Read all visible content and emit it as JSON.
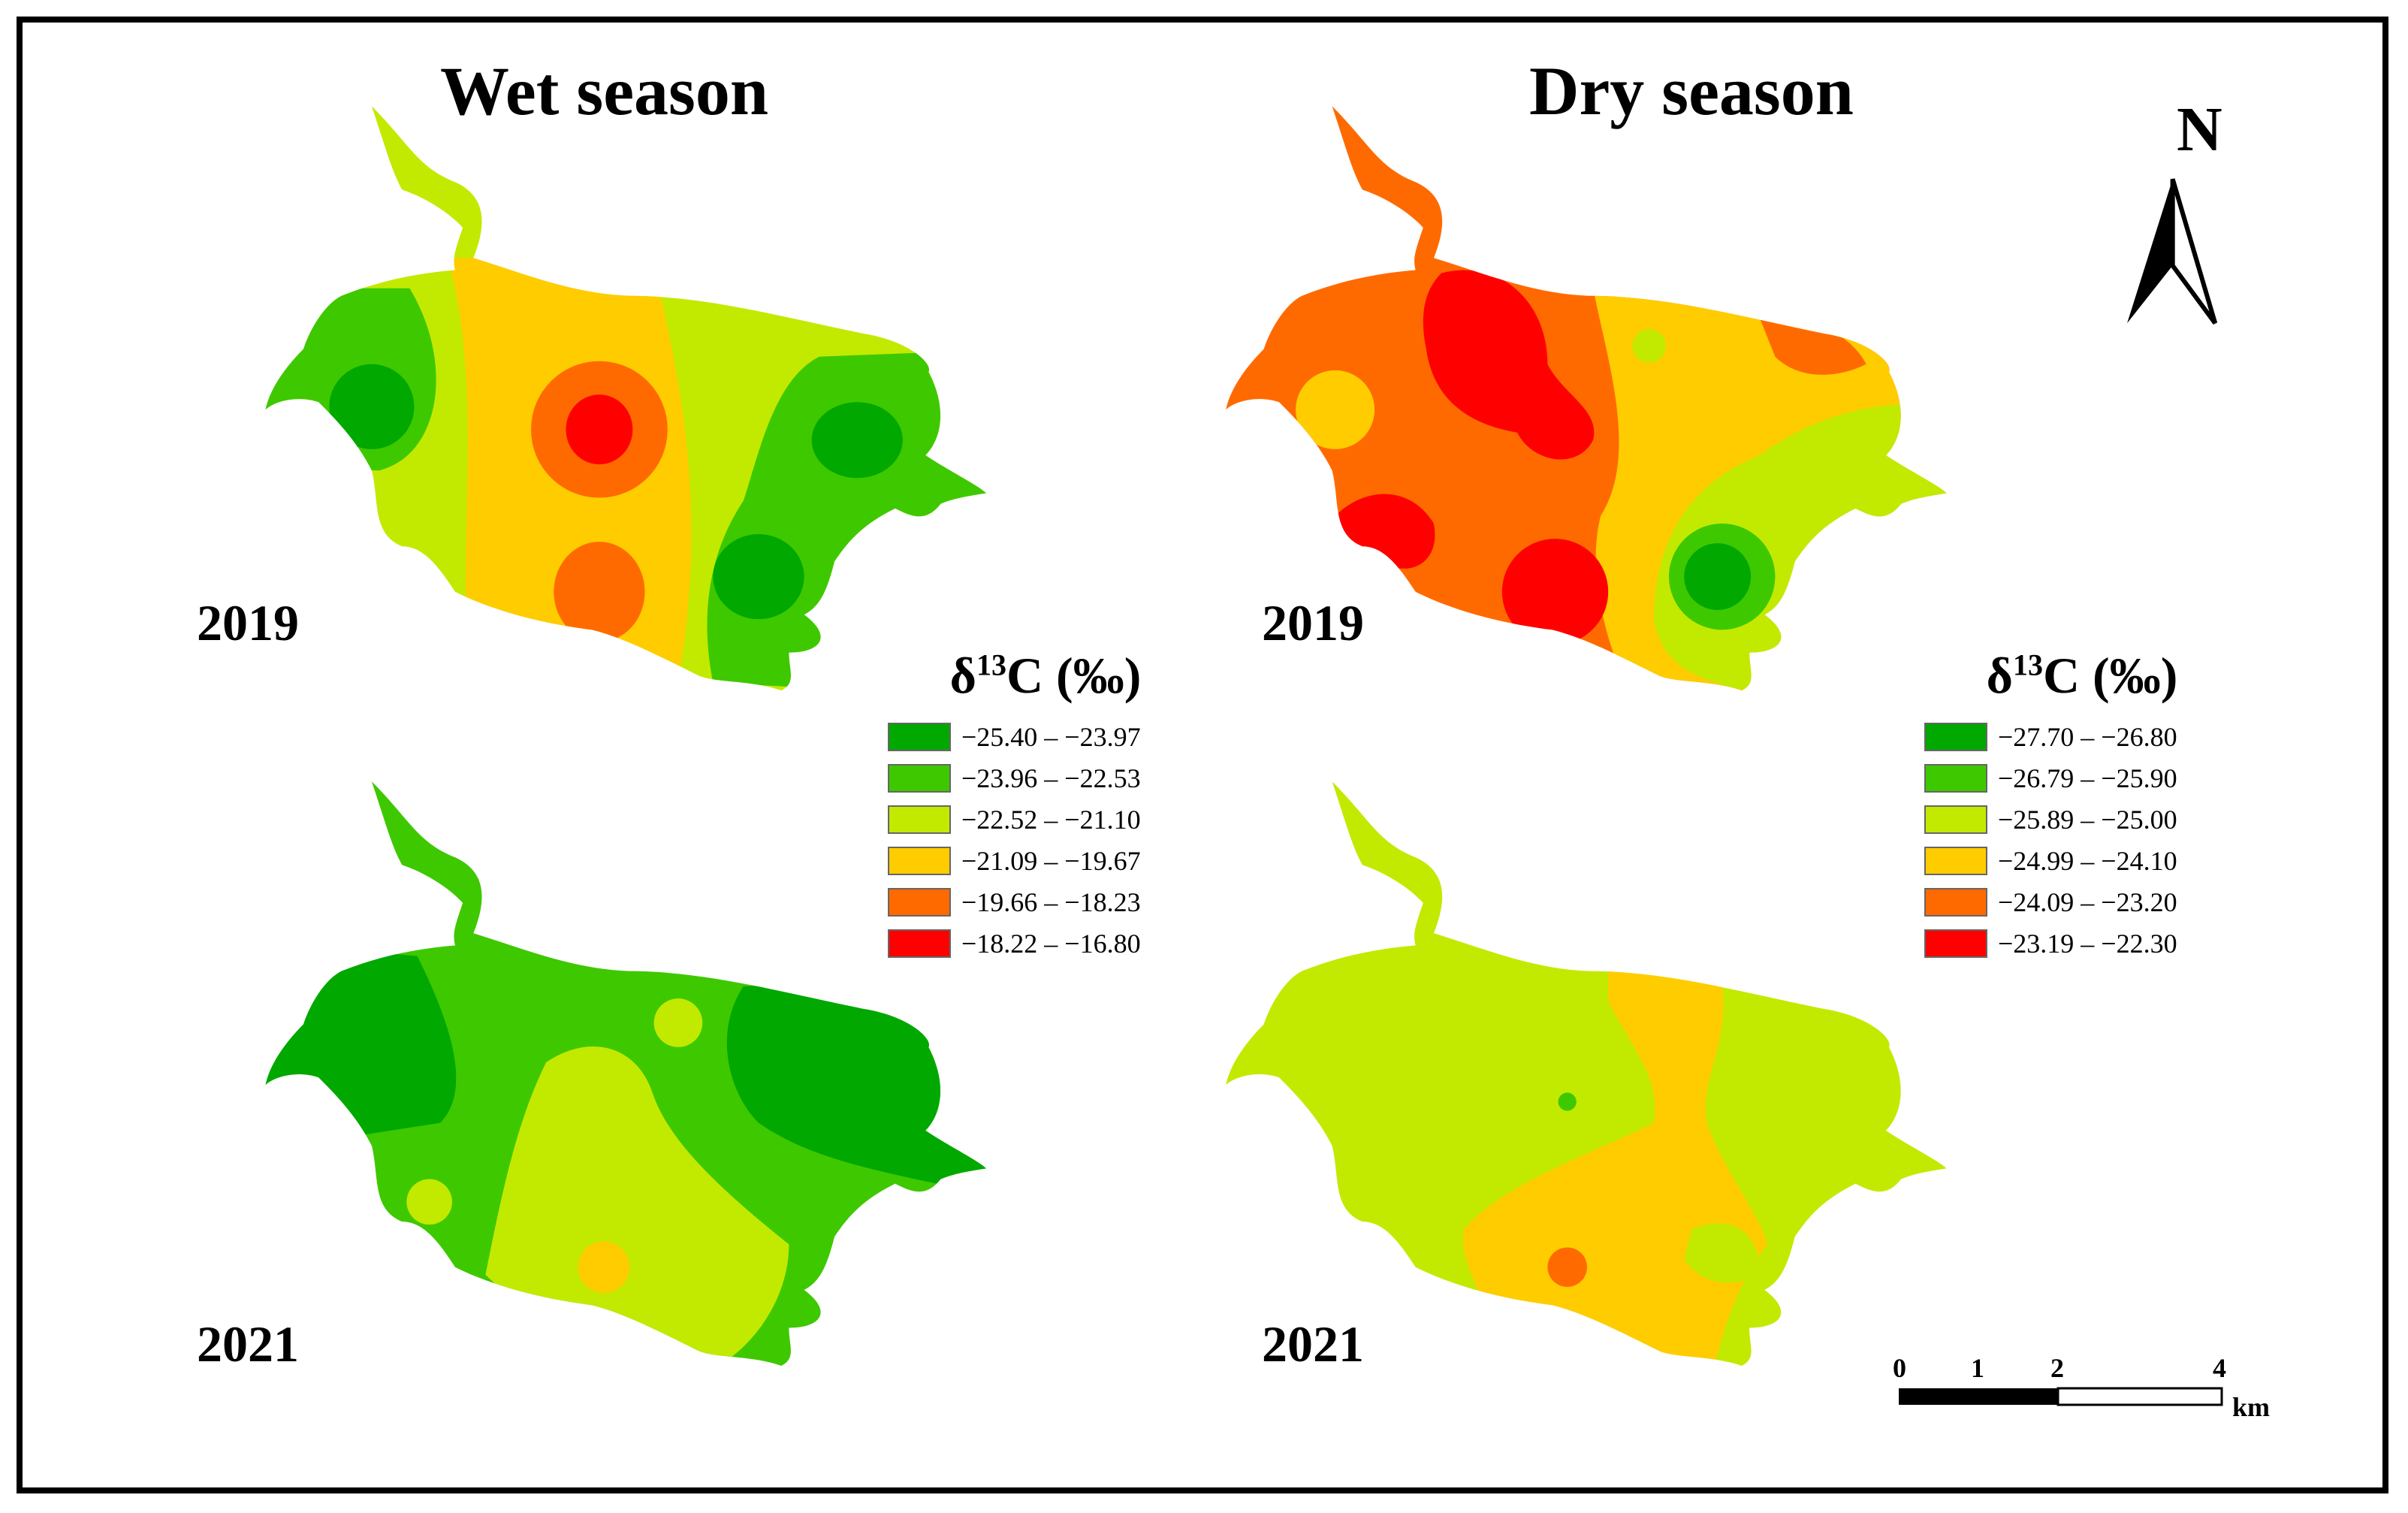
{
  "titles": {
    "wet": "Wet season",
    "dry": "Dry season"
  },
  "years": {
    "wet_top": "2019",
    "wet_bottom": "2021",
    "dry_top": "2019",
    "dry_bottom": "2021"
  },
  "legend_wet": {
    "title_prefix": "δ",
    "title_sup": "13",
    "title_suffix": "C (‰)",
    "items": [
      {
        "label": "−25.40 – −23.97",
        "color": "#00a800"
      },
      {
        "label": "−23.96 – −22.53",
        "color": "#3ec800"
      },
      {
        "label": "−22.52 – −21.10",
        "color": "#c2ea00"
      },
      {
        "label": "−21.09 – −19.67",
        "color": "#ffcc00"
      },
      {
        "label": "−19.66 – −18.23",
        "color": "#ff6a00"
      },
      {
        "label": "−18.22 – −16.80",
        "color": "#ff0000"
      }
    ]
  },
  "legend_dry": {
    "title_prefix": "δ",
    "title_sup": "13",
    "title_suffix": "C (‰)",
    "items": [
      {
        "label": "−27.70 – −26.80",
        "color": "#00a800"
      },
      {
        "label": "−26.79 – −25.90",
        "color": "#3ec800"
      },
      {
        "label": "−25.89 – −25.00",
        "color": "#c2ea00"
      },
      {
        "label": "−24.99 – −24.10",
        "color": "#ffcc00"
      },
      {
        "label": "−24.09 – −23.20",
        "color": "#ff6a00"
      },
      {
        "label": "−23.19 – −22.30",
        "color": "#ff0000"
      }
    ]
  },
  "north_arrow": {
    "label": "N"
  },
  "scale_bar": {
    "ticks": [
      "0",
      "1",
      "2",
      "4"
    ],
    "unit": "km"
  }
}
